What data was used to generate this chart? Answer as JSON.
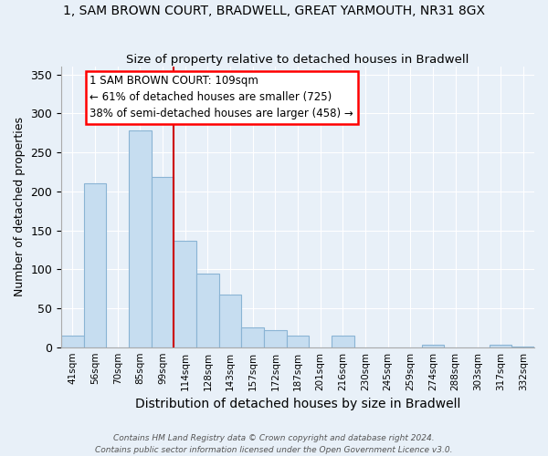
{
  "title": "1, SAM BROWN COURT, BRADWELL, GREAT YARMOUTH, NR31 8GX",
  "subtitle": "Size of property relative to detached houses in Bradwell",
  "xlabel": "Distribution of detached houses by size in Bradwell",
  "ylabel": "Number of detached properties",
  "bin_labels": [
    "41sqm",
    "56sqm",
    "70sqm",
    "85sqm",
    "99sqm",
    "114sqm",
    "128sqm",
    "143sqm",
    "157sqm",
    "172sqm",
    "187sqm",
    "201sqm",
    "216sqm",
    "230sqm",
    "245sqm",
    "259sqm",
    "274sqm",
    "288sqm",
    "303sqm",
    "317sqm",
    "332sqm"
  ],
  "bar_heights": [
    15,
    210,
    0,
    278,
    218,
    137,
    95,
    68,
    25,
    22,
    15,
    0,
    15,
    0,
    0,
    0,
    3,
    0,
    0,
    3,
    1
  ],
  "bar_color": "#c6ddf0",
  "bar_edge_color": "#8ab4d4",
  "vline_x_index": 5,
  "vline_color": "#cc0000",
  "annotation_title": "1 SAM BROWN COURT: 109sqm",
  "annotation_line1": "← 61% of detached houses are smaller (725)",
  "annotation_line2": "38% of semi-detached houses are larger (458) →",
  "ylim": [
    0,
    360
  ],
  "yticks": [
    0,
    50,
    100,
    150,
    200,
    250,
    300,
    350
  ],
  "bg_color": "#e8f0f8",
  "plot_bg_color": "#e8f0f8",
  "footer1": "Contains HM Land Registry data © Crown copyright and database right 2024.",
  "footer2": "Contains public sector information licensed under the Open Government Licence v3.0."
}
